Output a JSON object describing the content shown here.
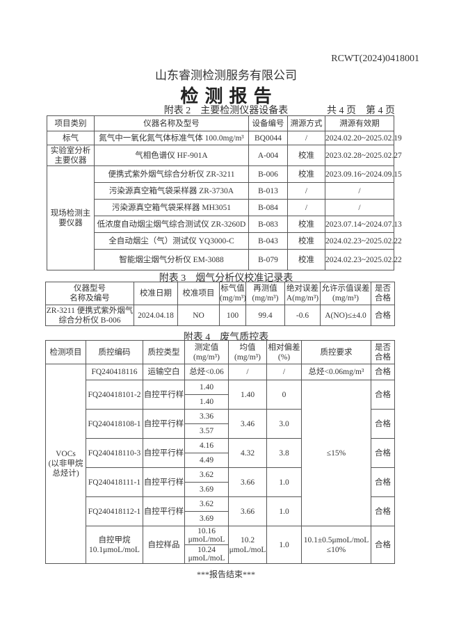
{
  "header": {
    "report_no": "RCWT(2024)0418001",
    "company": "山东睿测检测服务有限公司",
    "title": "检 测 报 告",
    "page_info": "共 4 页　第 4 页"
  },
  "table2": {
    "caption": "附表 2　主要检测仪器设备表",
    "headers": [
      "项目类别",
      "仪器名称及型号",
      "设备编号",
      "溯源方式",
      "溯源有效期"
    ],
    "groups": [
      {
        "category": "标气",
        "rows": [
          [
            "氮气中一氧化氮气体标准气体 100.0mg/m³",
            "BQ0044",
            "/",
            "2024.02.20~2025.02.19"
          ]
        ]
      },
      {
        "category": "实验室分析主要仪器",
        "rows": [
          [
            "气相色谱仪 HF-901A",
            "A-004",
            "校准",
            "2023.02.28~2025.02.27"
          ]
        ]
      },
      {
        "category": "现场检测主要仪器",
        "rows": [
          [
            "便携式紫外烟气综合分析仪 ZR-3211",
            "B-006",
            "校准",
            "2023.09.16~2024.09.15"
          ],
          [
            "污染源真空箱气袋采样器 ZR-3730A",
            "B-013",
            "/",
            "/"
          ],
          [
            "污染源真空箱气袋采样器 MH3051",
            "B-084",
            "/",
            "/"
          ],
          [
            "低浓度自动烟尘烟气综合测试仪 ZR-3260D",
            "B-083",
            "校准",
            "2023.07.14~2024.07.13"
          ],
          [
            "全自动烟尘（气）测试仪 YQ3000-C",
            "B-043",
            "校准",
            "2024.02.23~2025.02.22"
          ],
          [
            "智能烟尘烟气分析仪 EM-3088",
            "B-079",
            "校准",
            "2024.02.23~2025.02.22"
          ]
        ]
      }
    ]
  },
  "table3": {
    "caption": "附表 3　烟气分析仪校准记录表",
    "headers": [
      "仪器型号\n名称及编号",
      "校准日期",
      "校准项目",
      "标气值\n(mg/m³)",
      "再测值\n(mg/m³)",
      "绝对误差\nA(mg/m³)",
      "允许示值误差\n(mg/m³)",
      "是否\n合格"
    ],
    "rows": [
      [
        "ZR-3211 便携式紫外烟气\n综合分析仪 B-006",
        "2024.04.18",
        "NO",
        "100",
        "99.4",
        "-0.6",
        "A(NO)≤±4.0",
        "合格"
      ]
    ]
  },
  "table4": {
    "caption": "附表 4　废气质控表",
    "headers": [
      "检测项目",
      "质控编码",
      "质控类型",
      "测定值\n(mg/m³)",
      "均值\n(mg/m³)",
      "相对偏差\n(%)",
      "质控要求",
      "是否\n合格"
    ],
    "item": "VOCs\n(以非甲烷\n总烃计)",
    "blank": {
      "code": "FQ240418116",
      "type": "运输空白",
      "value": "总烃<0.06",
      "mean": "/",
      "dev": "/",
      "req": "总烃<0.06mg/m³",
      "ok": "合格"
    },
    "parallel_req": "≤15%",
    "parallel": [
      {
        "code": "FQ240418101-2",
        "type": "自控平行样",
        "v1": "1.40",
        "v2": "1.40",
        "mean": "1.40",
        "dev": "0",
        "ok": "合格"
      },
      {
        "code": "FQ240418108-1",
        "type": "自控平行样",
        "v1": "3.36",
        "v2": "3.57",
        "mean": "3.46",
        "dev": "3.0",
        "ok": "合格"
      },
      {
        "code": "FQ240418110-3",
        "type": "自控平行样",
        "v1": "4.16",
        "v2": "4.49",
        "mean": "4.32",
        "dev": "3.8",
        "ok": "合格"
      },
      {
        "code": "FQ240418111-1",
        "type": "自控平行样",
        "v1": "3.62",
        "v2": "3.69",
        "mean": "3.66",
        "dev": "1.0",
        "ok": "合格"
      },
      {
        "code": "FQ240418112-1",
        "type": "自控平行样",
        "v1": "3.62",
        "v2": "3.69",
        "mean": "3.66",
        "dev": "1.0",
        "ok": "合格"
      }
    ],
    "control": {
      "code": "自控甲烷\n10.1μmoL/moL",
      "type": "自控样品",
      "v1": "10.16\nμmoL/moL",
      "v2": "10.24\nμmoL/moL",
      "mean": "10.2\nμmoL/moL",
      "dev": "1.0",
      "req": "10.1±0.5μmoL/moL\n≤10%",
      "ok": "合格"
    }
  },
  "footer": {
    "end_text": "***报告结束***"
  }
}
